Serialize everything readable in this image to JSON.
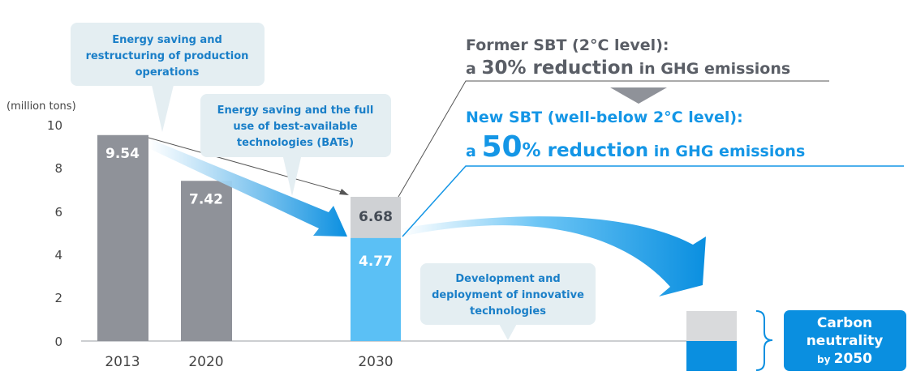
{
  "chart_data": {
    "type": "bar",
    "unit_label": "(million tons)",
    "y_ticks": [
      "0",
      "2",
      "4",
      "6",
      "8",
      "10"
    ],
    "ylim": [
      0,
      10
    ],
    "categories": [
      "2013",
      "2020",
      "2030",
      "2050"
    ],
    "bars": [
      {
        "category": "2013",
        "value": 9.54,
        "label": "9.54",
        "color": "#8f9299"
      },
      {
        "category": "2020",
        "value": 7.42,
        "label": "7.42",
        "color": "#8f9299"
      },
      {
        "category": "2030",
        "value": 4.77,
        "label": "4.77",
        "color": "#5bc0f5",
        "former_target": 6.68,
        "former_label": "6.68",
        "former_color": "#cfd1d4"
      },
      {
        "category": "2050",
        "value": 0,
        "label": ""
      }
    ],
    "callouts": [
      {
        "lines": [
          "Energy saving and",
          "restructuring of production",
          "operations"
        ]
      },
      {
        "lines": [
          "Energy saving and the full",
          "use of best-available",
          "technologies (BATs)"
        ]
      },
      {
        "lines": [
          "Development and",
          "deployment of innovative",
          "technologies"
        ]
      }
    ],
    "former_sbt": {
      "line1": "Former SBT (2°C level):",
      "line2_prefix": "a ",
      "line2_big": "30% reduction",
      "line2_suffix": " in GHG emissions"
    },
    "new_sbt": {
      "line1": "New SBT (well-below 2°C level):",
      "line2_prefix": "a ",
      "line2_big": "50",
      "line2_mid": "% reduction",
      "line2_suffix": " in GHG emissions"
    },
    "carbon_neutrality": {
      "line1": "Carbon",
      "line2": "neutrality",
      "line3_small": "by ",
      "line3_big": "2050"
    },
    "colors": {
      "gray_bar": "#8f9299",
      "light_gray": "#cfd1d4",
      "blue": "#0a8fe0",
      "light_blue": "#5bc0f5",
      "callout_bg": "#e4eef2"
    }
  }
}
